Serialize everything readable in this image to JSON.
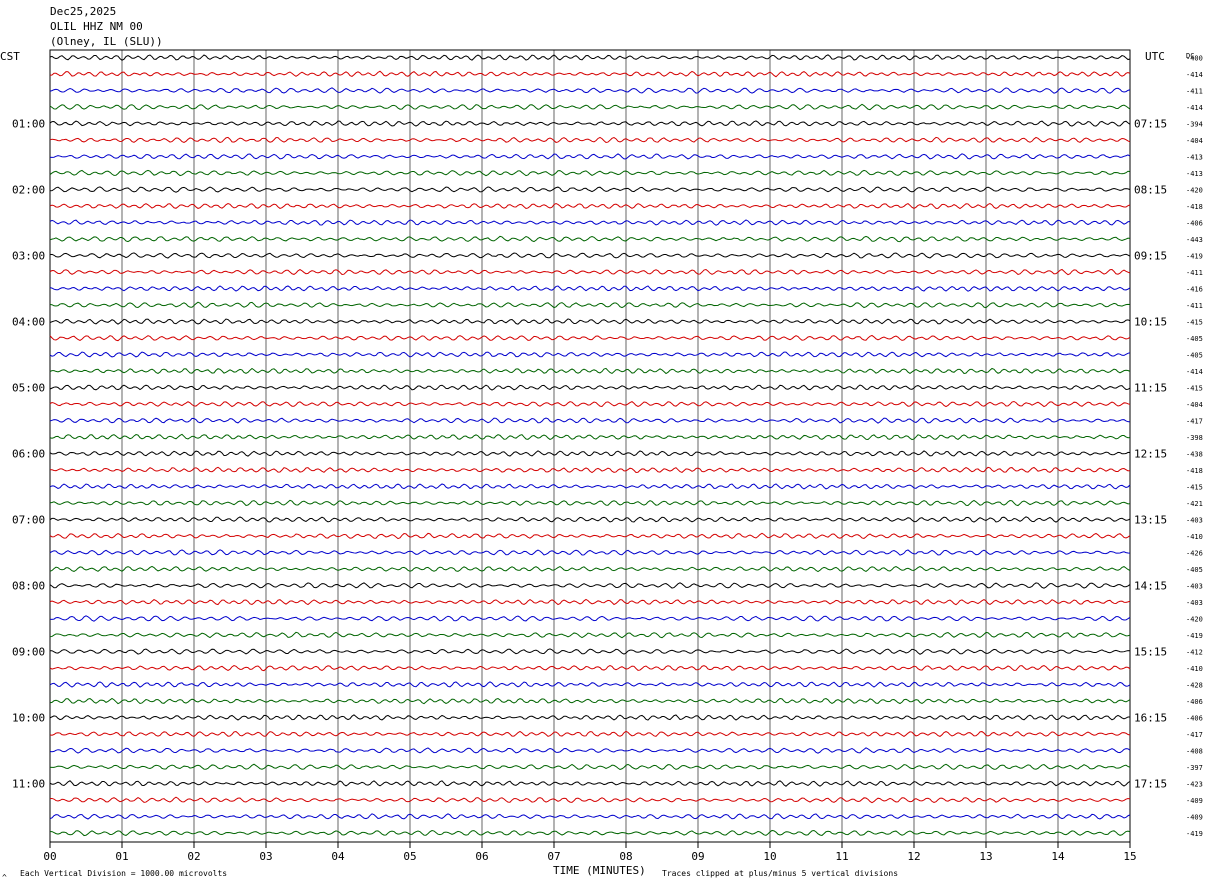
{
  "header": {
    "date": "Dec25,2025",
    "station": "OLIL HHZ NM 00",
    "location": "(Olney, IL (SLU))"
  },
  "labels": {
    "left_tz": "CST",
    "right_tz": "UTC",
    "dc": "DC",
    "xlabel": "TIME (MINUTES)",
    "scale_note": "Each Vertical Division = 1000.00 microvolts",
    "clip_note": "Traces clipped at plus/minus 5 vertical divisions",
    "corner_mark": "^"
  },
  "colors": {
    "trace_cycle": [
      "#000000",
      "#d40000",
      "#0000cc",
      "#006400"
    ],
    "grid": "#000000"
  },
  "chart_data": {
    "type": "line",
    "title": "OLIL HHZ NM 00",
    "xlabel": "TIME (MINUTES)",
    "xlim": [
      0,
      15
    ],
    "x_ticks": [
      "00",
      "01",
      "02",
      "03",
      "04",
      "05",
      "06",
      "07",
      "08",
      "09",
      "10",
      "11",
      "12",
      "13",
      "14",
      "15"
    ],
    "left_hour_labels": [
      "01:00",
      "02:00",
      "03:00",
      "04:00",
      "05:00",
      "06:00",
      "07:00",
      "08:00",
      "09:00",
      "10:00",
      "11:00"
    ],
    "right_hour_labels": [
      "07:15",
      "08:15",
      "09:15",
      "10:15",
      "11:15",
      "12:15",
      "13:15",
      "14:15",
      "15:15",
      "16:15",
      "17:15"
    ],
    "dc_offsets": [
      -400,
      -414,
      -411,
      -414,
      -394,
      -404,
      -413,
      -413,
      -420,
      -418,
      -406,
      -443,
      -419,
      -411,
      -416,
      -411,
      -415,
      -405,
      -405,
      -414,
      -415,
      -404,
      -417,
      -398,
      -438,
      -418,
      -415,
      -421,
      -403,
      -410,
      -426,
      -405,
      -403,
      -403,
      -420,
      -419,
      -412,
      -410,
      -428,
      -406,
      -406,
      -417,
      -408,
      -397,
      -423,
      -409,
      -409,
      -419
    ],
    "num_traces": 48,
    "minutes_per_trace": 15
  }
}
